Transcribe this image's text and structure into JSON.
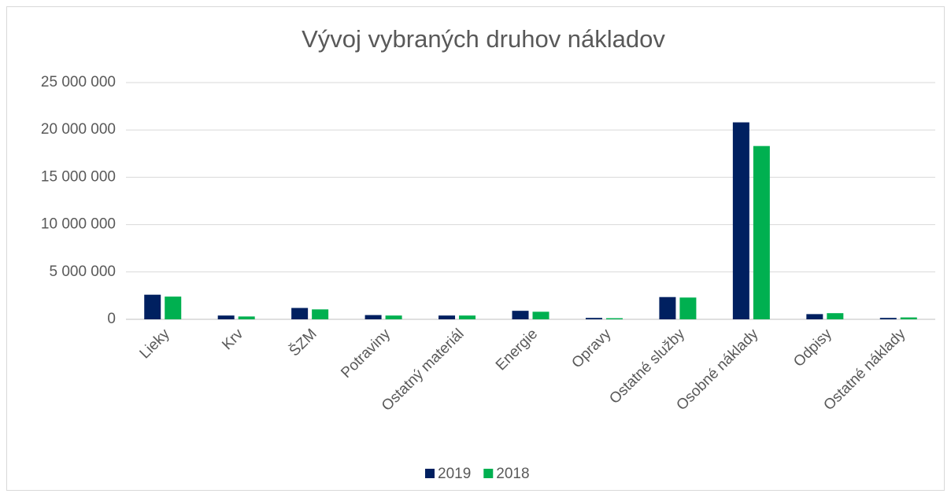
{
  "chart_data": {
    "type": "bar",
    "title": "Vývoj vybraných druhov nákladov",
    "categories": [
      "Lieky",
      "Krv",
      "ŠZM",
      "Potraviny",
      "Ostatný materiál",
      "Energie",
      "Opravy",
      "Ostatné služby",
      "Osobné náklady",
      "Odpisy",
      "Ostatné náklady"
    ],
    "series": [
      {
        "name": "2019",
        "color": "#002060",
        "values": [
          2600000,
          400000,
          1200000,
          450000,
          400000,
          900000,
          150000,
          2350000,
          20800000,
          550000,
          150000
        ]
      },
      {
        "name": "2018",
        "color": "#00b050",
        "values": [
          2400000,
          300000,
          1050000,
          400000,
          400000,
          800000,
          120000,
          2300000,
          18300000,
          650000,
          200000
        ]
      }
    ],
    "ylim": [
      0,
      25000000
    ],
    "yticks": [
      0,
      {
        "value": 5000000,
        "label": "5 000 000"
      },
      {
        "value": 10000000,
        "label": "10 000 000"
      },
      {
        "value": 15000000,
        "label": "15 000 000"
      },
      {
        "value": 20000000,
        "label": "20 000 000"
      },
      {
        "value": 25000000,
        "label": "25 000 000"
      }
    ],
    "grid": true,
    "legend": "bottom"
  }
}
